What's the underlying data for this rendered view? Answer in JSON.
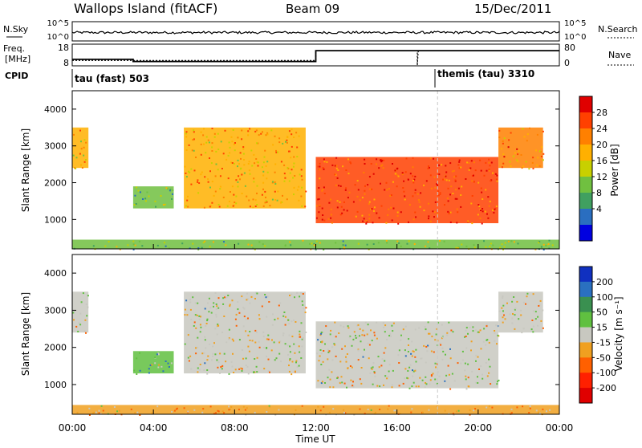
{
  "header": {
    "station": "Wallops Island (fitACF)",
    "beam": "Beam 09",
    "date": "15/Dec/2011"
  },
  "top_panels": {
    "nsky_label": "N.Sky",
    "nsearch_label": "N.Search",
    "nsky_ticks": [
      "10^5",
      "10^0"
    ],
    "nsearch_ticks": [
      "10^5",
      "10^0"
    ],
    "freq_label": "Freq.",
    "freq_unit": "[MHz]",
    "freq_ticks": [
      "18",
      "8"
    ],
    "nave_label": "Nave",
    "nave_ticks": [
      "80",
      "0"
    ],
    "cpid_label": "CPID",
    "cpid_segments": [
      {
        "label": "tau (fast) 503",
        "start_h": 0
      },
      {
        "label": "themis (tau) 3310",
        "start_h": 18
      }
    ],
    "freq_series": [
      [
        0,
        11
      ],
      [
        3,
        11
      ],
      [
        3,
        10
      ],
      [
        12,
        10
      ],
      [
        12,
        15
      ],
      [
        24,
        15
      ]
    ],
    "nave_series": [
      [
        0,
        20
      ],
      [
        12,
        20
      ],
      [
        12,
        55
      ],
      [
        17,
        55
      ],
      [
        17,
        2
      ],
      [
        17.05,
        55
      ],
      [
        24,
        55
      ]
    ]
  },
  "power_panel": {
    "ylabel": "Slant Range [km]",
    "colorbar_label": "Power [dB]",
    "colorbar_ticks": [
      "28",
      "24",
      "20",
      "16",
      "12",
      "8",
      "4"
    ],
    "colorbar_colors": [
      "#e00000",
      "#ff4000",
      "#ff8000",
      "#ffb000",
      "#c8d000",
      "#70c040",
      "#40a060",
      "#2a6ec0",
      "#0000e0"
    ]
  },
  "velocity_panel": {
    "ylabel": "Slant Range [km]",
    "colorbar_label": "Velocity [m s⁻¹]",
    "colorbar_ticks": [
      "200",
      "100",
      "50",
      "15",
      "-15",
      "-50",
      "-100",
      "-200"
    ],
    "colorbar_colors": [
      "#1030c0",
      "#2a70c0",
      "#3a9050",
      "#60c040",
      "#c8c8c0",
      "#f0a020",
      "#ff6000",
      "#ff2000",
      "#e00000"
    ]
  },
  "x_axis": {
    "title": "Time UT",
    "ticks": [
      "00:00",
      "04:00",
      "08:00",
      "12:00",
      "16:00",
      "20:00",
      "00:00"
    ]
  },
  "chart_data": [
    {
      "type": "line",
      "title": "Freq.",
      "ylabel": "[MHz]",
      "x": [
        0,
        3,
        3,
        12,
        12,
        24
      ],
      "series": [
        {
          "name": "Freq.",
          "values": [
            11,
            11,
            10,
            10,
            15,
            15
          ]
        }
      ],
      "ylim": [
        8,
        18
      ],
      "xlim": [
        0,
        24
      ]
    },
    {
      "type": "heatmap",
      "title": "",
      "xlabel": "Time UT",
      "ylabel": "Slant Range [km]",
      "legend_label": "Power [dB]",
      "xlim": [
        0,
        24
      ],
      "ylim": [
        200,
        4500
      ],
      "clim": [
        0,
        30
      ],
      "regions": [
        {
          "t_start": 0.0,
          "t_end": 0.8,
          "range_low": 2400,
          "range_high": 3500,
          "value": 18
        },
        {
          "t_start": 5.5,
          "t_end": 11.5,
          "range_low": 1300,
          "range_high": 3500,
          "value": 20
        },
        {
          "t_start": 12.0,
          "t_end": 21.0,
          "range_low": 900,
          "range_high": 2700,
          "value": 26
        },
        {
          "t_start": 21.0,
          "t_end": 23.2,
          "range_low": 2400,
          "range_high": 3500,
          "value": 22
        },
        {
          "t_start": 3.0,
          "t_end": 5.0,
          "range_low": 1300,
          "range_high": 1900,
          "value": 10
        },
        {
          "t_start": 0.0,
          "t_end": 24.0,
          "range_low": 200,
          "range_high": 450,
          "value": 12
        }
      ]
    },
    {
      "type": "heatmap",
      "title": "",
      "xlabel": "Time UT",
      "ylabel": "Slant Range [km]",
      "legend_label": "Velocity [m s⁻¹]",
      "xlim": [
        0,
        24
      ],
      "ylim": [
        200,
        4500
      ],
      "clim": [
        -200,
        200
      ],
      "regions": [
        {
          "t_start": 0.0,
          "t_end": 0.8,
          "range_low": 2400,
          "range_high": 3500,
          "value": 0
        },
        {
          "t_start": 5.5,
          "t_end": 11.5,
          "range_low": 1300,
          "range_high": 3500,
          "value": 0
        },
        {
          "t_start": 12.0,
          "t_end": 21.0,
          "range_low": 900,
          "range_high": 2700,
          "value": 0
        },
        {
          "t_start": 21.0,
          "t_end": 23.2,
          "range_low": 2400,
          "range_high": 3500,
          "value": 0
        },
        {
          "t_start": 3.0,
          "t_end": 5.0,
          "range_low": 1300,
          "range_high": 1900,
          "value": 40
        },
        {
          "t_start": 0.0,
          "t_end": 24.0,
          "range_low": 200,
          "range_high": 450,
          "value": -40
        }
      ]
    }
  ]
}
